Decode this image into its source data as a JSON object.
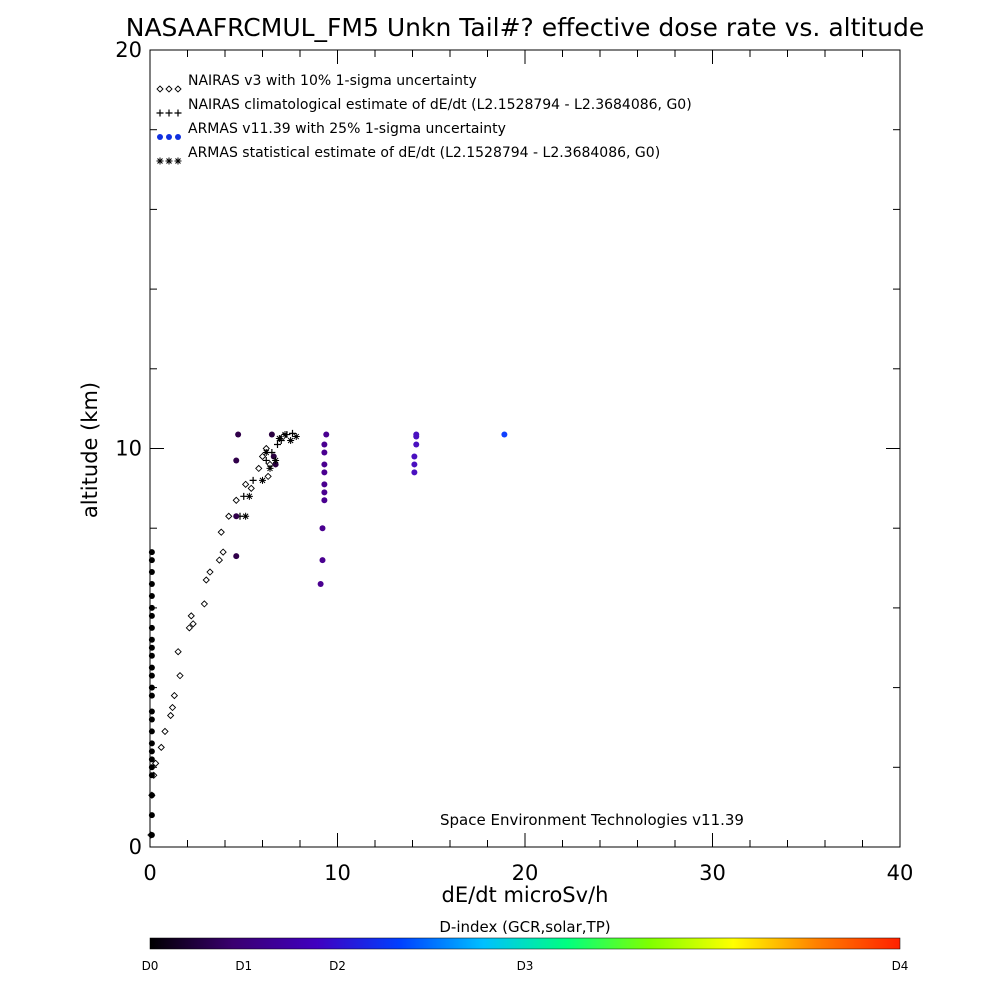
{
  "chart_data": {
    "type": "scatter",
    "title": "NASAAFRCMUL_FM5 Unkn Tail#? effective dose rate vs. altitude",
    "xlabel": "dE/dt microSv/h",
    "ylabel": "altitude (km)",
    "xlim": [
      0,
      40
    ],
    "ylim": [
      0,
      20
    ],
    "x_ticks": [
      "0",
      "10",
      "20",
      "30",
      "40"
    ],
    "y_ticks": [
      "0",
      "10",
      "20"
    ],
    "legend_position": "top-left",
    "legend": [
      {
        "marker": "◇◇◇",
        "label": "NAIRAS v3 with 10% 1-sigma uncertainty"
      },
      {
        "marker": "+++",
        "label": "NAIRAS climatological estimate of dE/dt (L2.1528794 - L2.3684086, G0)"
      },
      {
        "marker": "●●●",
        "label": "ARMAS v11.39 with 25% 1-sigma uncertainty"
      },
      {
        "marker": "***",
        "label": "ARMAS statistical estimate of dE/dt (L2.1528794 - L2.3684086, G0)"
      }
    ],
    "annotation": "Space Environment Technologies v11.39",
    "colorbar": {
      "title": "D-index (GCR,solar,TP)",
      "labels": [
        {
          "text": "D0",
          "value": 0
        },
        {
          "text": "D1",
          "value": 5
        },
        {
          "text": "D2",
          "value": 10
        },
        {
          "text": "D3",
          "value": 20
        },
        {
          "text": "D4",
          "value": 40
        }
      ],
      "colors": [
        "#000000",
        "#3a0070",
        "#4000c0",
        "#0040ff",
        "#00c0ff",
        "#00ff80",
        "#80ff00",
        "#ffff00",
        "#ff8000",
        "#ff2000"
      ]
    },
    "series": [
      {
        "name": "NAIRAS v3 with 10% 1-sigma uncertainty",
        "marker": "diamond",
        "color": "#000000",
        "points": [
          [
            0.05,
            0.3
          ],
          [
            0.1,
            1.3
          ],
          [
            0.2,
            1.8
          ],
          [
            0.3,
            2.1
          ],
          [
            0.6,
            2.5
          ],
          [
            0.8,
            2.9
          ],
          [
            1.1,
            3.3
          ],
          [
            1.2,
            3.5
          ],
          [
            1.3,
            3.8
          ],
          [
            1.6,
            4.3
          ],
          [
            1.5,
            4.9
          ],
          [
            2.1,
            5.5
          ],
          [
            2.2,
            5.8
          ],
          [
            2.3,
            5.6
          ],
          [
            2.9,
            6.1
          ],
          [
            3.0,
            6.7
          ],
          [
            3.2,
            6.9
          ],
          [
            3.7,
            7.2
          ],
          [
            3.9,
            7.4
          ],
          [
            3.8,
            7.9
          ],
          [
            4.2,
            8.3
          ],
          [
            4.6,
            8.7
          ],
          [
            5.1,
            9.1
          ],
          [
            5.4,
            9.0
          ],
          [
            5.8,
            9.5
          ],
          [
            6.0,
            9.8
          ],
          [
            6.2,
            10.0
          ],
          [
            6.4,
            9.6
          ],
          [
            6.3,
            9.3
          ],
          [
            7.1,
            10.3
          ]
        ]
      },
      {
        "name": "NAIRAS climatological estimate of dE/dt (L2.1528794 - L2.3684086, G0)",
        "marker": "plus",
        "color": "#000000",
        "points": [
          [
            4.8,
            8.3
          ],
          [
            5.0,
            8.8
          ],
          [
            5.5,
            9.2
          ],
          [
            6.2,
            9.7
          ],
          [
            6.5,
            9.9
          ],
          [
            6.8,
            10.1
          ],
          [
            7.0,
            10.2
          ],
          [
            7.3,
            10.35
          ],
          [
            7.6,
            10.38
          ]
        ]
      },
      {
        "name": "ARMAS v11.39 with 25% 1-sigma uncertainty",
        "marker": "dot",
        "color_by": "D-index",
        "points": [
          [
            0.1,
            0.3,
            "#000000"
          ],
          [
            0.1,
            0.8,
            "#000000"
          ],
          [
            0.1,
            1.3,
            "#000000"
          ],
          [
            0.1,
            1.8,
            "#000000"
          ],
          [
            0.1,
            2.0,
            "#000000"
          ],
          [
            0.1,
            2.2,
            "#000000"
          ],
          [
            0.1,
            2.4,
            "#000000"
          ],
          [
            0.1,
            2.6,
            "#000000"
          ],
          [
            0.1,
            2.9,
            "#000000"
          ],
          [
            0.1,
            3.2,
            "#000000"
          ],
          [
            0.1,
            3.4,
            "#000000"
          ],
          [
            0.1,
            3.8,
            "#000000"
          ],
          [
            0.1,
            4.0,
            "#000000"
          ],
          [
            0.1,
            4.3,
            "#000000"
          ],
          [
            0.1,
            4.5,
            "#000000"
          ],
          [
            0.1,
            4.8,
            "#000000"
          ],
          [
            0.1,
            5.0,
            "#000000"
          ],
          [
            0.1,
            5.2,
            "#000000"
          ],
          [
            0.1,
            5.5,
            "#000000"
          ],
          [
            0.1,
            5.8,
            "#000000"
          ],
          [
            0.1,
            6.0,
            "#000000"
          ],
          [
            0.1,
            6.3,
            "#000000"
          ],
          [
            0.1,
            6.6,
            "#000000"
          ],
          [
            0.1,
            6.9,
            "#000000"
          ],
          [
            0.1,
            7.2,
            "#000000"
          ],
          [
            0.1,
            7.4,
            "#000000"
          ],
          [
            4.6,
            7.3,
            "#30004a"
          ],
          [
            4.6,
            8.3,
            "#30004a"
          ],
          [
            4.6,
            9.7,
            "#30004a"
          ],
          [
            4.7,
            10.35,
            "#30004a"
          ],
          [
            6.5,
            10.35,
            "#2a0040"
          ],
          [
            6.6,
            9.8,
            "#2a0040"
          ],
          [
            6.7,
            9.6,
            "#2a0040"
          ],
          [
            9.1,
            6.6,
            "#4a0090"
          ],
          [
            9.2,
            7.2,
            "#4a0090"
          ],
          [
            9.2,
            8.0,
            "#4a0090"
          ],
          [
            9.3,
            8.7,
            "#4a0090"
          ],
          [
            9.3,
            8.9,
            "#4a0090"
          ],
          [
            9.3,
            9.1,
            "#4a0090"
          ],
          [
            9.3,
            9.4,
            "#4a0090"
          ],
          [
            9.3,
            9.6,
            "#4a0090"
          ],
          [
            9.3,
            9.9,
            "#4a0090"
          ],
          [
            9.3,
            10.1,
            "#4a0090"
          ],
          [
            9.4,
            10.35,
            "#4a0090"
          ],
          [
            14.1,
            9.4,
            "#4a10c0"
          ],
          [
            14.1,
            9.6,
            "#4a10c0"
          ],
          [
            14.1,
            9.8,
            "#4a10c0"
          ],
          [
            14.2,
            10.1,
            "#4a10c0"
          ],
          [
            14.2,
            10.3,
            "#4a10c0"
          ],
          [
            14.2,
            10.35,
            "#4a10c0"
          ],
          [
            18.9,
            10.35,
            "#1040ff"
          ]
        ]
      },
      {
        "name": "ARMAS statistical estimate of dE/dt (L2.1528794 - L2.3684086, G0)",
        "marker": "asterisk",
        "color": "#000000",
        "points": [
          [
            5.1,
            8.3
          ],
          [
            5.3,
            8.8
          ],
          [
            6.0,
            9.2
          ],
          [
            6.2,
            9.9
          ],
          [
            6.4,
            9.5
          ],
          [
            6.7,
            9.7
          ],
          [
            6.9,
            10.25
          ],
          [
            7.2,
            10.35
          ],
          [
            7.5,
            10.2
          ],
          [
            7.8,
            10.3
          ]
        ]
      }
    ]
  }
}
